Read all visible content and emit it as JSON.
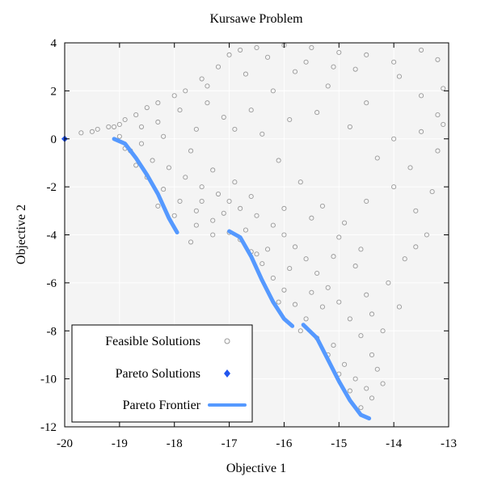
{
  "chart_data": {
    "type": "scatter",
    "title": "Kursawe Problem",
    "xlabel": "Objective 1",
    "ylabel": "Objective 2",
    "xlim": [
      -20,
      -13
    ],
    "ylim": [
      -12,
      4
    ],
    "x_ticks": [
      -20,
      -19,
      -18,
      -17,
      -16,
      -15,
      -14,
      -13
    ],
    "y_ticks": [
      -12,
      -10,
      -8,
      -6,
      -4,
      -2,
      0,
      2,
      4
    ],
    "grid": true,
    "legend_position": "bottom-left",
    "colors": {
      "feasible": "#999999",
      "pareto": "#2255ee",
      "frontier": "#5599ff",
      "plot_bg": "#f4f4f4"
    },
    "series": [
      {
        "name": "Feasible Solutions",
        "kind": "scatter-hollow-circle",
        "points": [
          [
            -19.5,
            0.3
          ],
          [
            -19.4,
            0.4
          ],
          [
            -19.7,
            0.25
          ],
          [
            -19.2,
            0.5
          ],
          [
            -19.0,
            0.6
          ],
          [
            -18.9,
            0.8
          ],
          [
            -18.7,
            1.0
          ],
          [
            -18.5,
            1.3
          ],
          [
            -18.3,
            1.5
          ],
          [
            -18.0,
            1.8
          ],
          [
            -17.8,
            2.0
          ],
          [
            -17.5,
            2.5
          ],
          [
            -17.2,
            3.0
          ],
          [
            -17.0,
            3.5
          ],
          [
            -16.8,
            3.7
          ],
          [
            -16.5,
            3.8
          ],
          [
            -16.0,
            3.9
          ],
          [
            -15.5,
            3.8
          ],
          [
            -15.0,
            3.6
          ],
          [
            -14.5,
            3.5
          ],
          [
            -14.0,
            3.2
          ],
          [
            -13.5,
            3.7
          ],
          [
            -13.2,
            3.3
          ],
          [
            -13.1,
            2.1
          ],
          [
            -13.2,
            1.0
          ],
          [
            -13.1,
            0.6
          ],
          [
            -13.5,
            0.3
          ],
          [
            -14.0,
            0.0
          ],
          [
            -14.5,
            1.5
          ],
          [
            -15.2,
            2.2
          ],
          [
            -15.8,
            2.8
          ],
          [
            -16.2,
            2.0
          ],
          [
            -16.6,
            1.2
          ],
          [
            -17.1,
            0.9
          ],
          [
            -17.6,
            0.4
          ],
          [
            -18.2,
            0.1
          ],
          [
            -18.6,
            -0.2
          ],
          [
            -18.8,
            -0.5
          ],
          [
            -18.4,
            -0.9
          ],
          [
            -18.1,
            -1.2
          ],
          [
            -17.8,
            -1.6
          ],
          [
            -17.5,
            -2.0
          ],
          [
            -17.2,
            -2.3
          ],
          [
            -17.0,
            -2.6
          ],
          [
            -16.8,
            -2.9
          ],
          [
            -16.5,
            -3.2
          ],
          [
            -16.2,
            -3.6
          ],
          [
            -16.0,
            -4.0
          ],
          [
            -15.8,
            -4.5
          ],
          [
            -15.6,
            -5.0
          ],
          [
            -15.4,
            -5.6
          ],
          [
            -15.2,
            -6.2
          ],
          [
            -15.0,
            -6.8
          ],
          [
            -14.8,
            -7.5
          ],
          [
            -14.6,
            -8.2
          ],
          [
            -14.4,
            -9.0
          ],
          [
            -14.3,
            -9.6
          ],
          [
            -14.2,
            -10.2
          ],
          [
            -14.4,
            -10.8
          ],
          [
            -14.6,
            -11.2
          ],
          [
            -14.8,
            -10.5
          ],
          [
            -15.0,
            -9.8
          ],
          [
            -15.2,
            -9.0
          ],
          [
            -15.4,
            -8.3
          ],
          [
            -15.6,
            -7.5
          ],
          [
            -15.8,
            -6.9
          ],
          [
            -16.0,
            -6.3
          ],
          [
            -16.2,
            -5.8
          ],
          [
            -16.4,
            -5.2
          ],
          [
            -16.6,
            -4.7
          ],
          [
            -16.8,
            -4.2
          ],
          [
            -17.0,
            -3.9
          ],
          [
            -17.3,
            -3.4
          ],
          [
            -17.6,
            -3.0
          ],
          [
            -17.9,
            -2.6
          ],
          [
            -18.2,
            -2.1
          ],
          [
            -18.5,
            -1.6
          ],
          [
            -18.7,
            -1.1
          ],
          [
            -18.9,
            -0.4
          ],
          [
            -19.0,
            0.1
          ],
          [
            -14.0,
            -2.0
          ],
          [
            -13.6,
            -3.0
          ],
          [
            -13.4,
            -4.0
          ],
          [
            -13.8,
            -5.0
          ],
          [
            -14.1,
            -6.0
          ],
          [
            -13.9,
            -7.0
          ],
          [
            -14.2,
            -8.0
          ],
          [
            -13.7,
            -1.2
          ],
          [
            -14.5,
            -2.6
          ],
          [
            -14.9,
            -3.5
          ],
          [
            -15.3,
            -2.8
          ],
          [
            -15.7,
            -1.8
          ],
          [
            -16.1,
            -0.9
          ],
          [
            -16.4,
            0.2
          ],
          [
            -15.9,
            0.8
          ],
          [
            -15.4,
            1.1
          ],
          [
            -14.8,
            0.5
          ],
          [
            -14.3,
            -0.8
          ],
          [
            -14.6,
            -4.6
          ],
          [
            -15.1,
            -4.9
          ],
          [
            -13.5,
            1.8
          ],
          [
            -13.9,
            2.6
          ],
          [
            -14.7,
            2.9
          ],
          [
            -15.6,
            3.2
          ],
          [
            -16.3,
            3.4
          ],
          [
            -17.4,
            2.2
          ],
          [
            -17.9,
            1.2
          ],
          [
            -18.3,
            0.7
          ],
          [
            -17.7,
            -0.5
          ],
          [
            -17.3,
            -1.3
          ],
          [
            -16.9,
            -1.8
          ],
          [
            -16.6,
            -2.4
          ],
          [
            -16.0,
            -2.9
          ],
          [
            -15.5,
            -3.3
          ],
          [
            -15.0,
            -4.1
          ],
          [
            -14.7,
            -5.3
          ],
          [
            -14.5,
            -6.5
          ],
          [
            -14.4,
            -7.3
          ],
          [
            -15.3,
            -7.0
          ],
          [
            -15.5,
            -6.4
          ],
          [
            -15.9,
            -5.4
          ],
          [
            -16.3,
            -4.6
          ],
          [
            -16.7,
            -3.8
          ],
          [
            -17.1,
            -3.1
          ],
          [
            -17.5,
            -2.6
          ],
          [
            -18.0,
            -3.2
          ],
          [
            -18.3,
            -2.8
          ],
          [
            -17.6,
            -3.6
          ],
          [
            -17.3,
            -4.0
          ],
          [
            -17.7,
            -4.3
          ],
          [
            -16.5,
            -4.8
          ],
          [
            -16.1,
            -6.8
          ],
          [
            -15.7,
            -8.0
          ],
          [
            -15.1,
            -8.6
          ],
          [
            -14.9,
            -9.4
          ],
          [
            -14.7,
            -10.0
          ],
          [
            -14.5,
            -10.4
          ],
          [
            -13.6,
            -4.5
          ],
          [
            -13.3,
            -2.2
          ],
          [
            -13.2,
            -0.5
          ],
          [
            -16.9,
            0.4
          ],
          [
            -17.4,
            1.5
          ],
          [
            -18.6,
            0.5
          ],
          [
            -19.1,
            0.5
          ],
          [
            -16.7,
            2.7
          ],
          [
            -15.1,
            3.0
          ]
        ]
      },
      {
        "name": "Pareto Solutions",
        "kind": "scatter-filled-diamond",
        "points": [
          [
            -20,
            0
          ]
        ]
      },
      {
        "name": "Pareto Frontier",
        "kind": "line",
        "segments": [
          [
            [
              -19.1,
              0.0
            ],
            [
              -18.9,
              -0.2
            ],
            [
              -18.7,
              -0.8
            ],
            [
              -18.5,
              -1.5
            ],
            [
              -18.3,
              -2.3
            ],
            [
              -18.1,
              -3.3
            ],
            [
              -17.95,
              -3.9
            ]
          ],
          [
            [
              -17.0,
              -3.85
            ],
            [
              -16.8,
              -4.1
            ],
            [
              -16.6,
              -4.9
            ],
            [
              -16.4,
              -5.9
            ],
            [
              -16.2,
              -6.8
            ],
            [
              -16.0,
              -7.5
            ],
            [
              -15.85,
              -7.8
            ]
          ],
          [
            [
              -15.65,
              -7.75
            ],
            [
              -15.4,
              -8.3
            ],
            [
              -15.2,
              -9.2
            ],
            [
              -15.0,
              -10.1
            ],
            [
              -14.8,
              -10.9
            ],
            [
              -14.6,
              -11.5
            ],
            [
              -14.45,
              -11.65
            ]
          ]
        ]
      }
    ]
  }
}
